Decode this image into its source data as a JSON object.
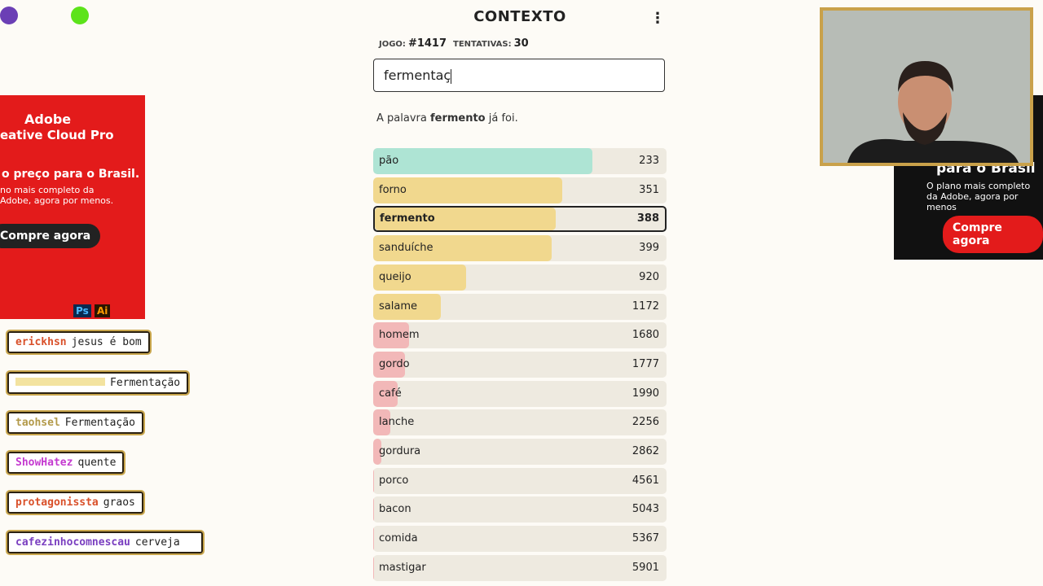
{
  "header": {
    "title": "CONTEXTO",
    "game_label": "JOGO:",
    "game_number": "#1417",
    "attempts_label": "TENTATIVAS:",
    "attempts": 30
  },
  "input": {
    "value": "fermentaç"
  },
  "message": {
    "before": "A palavra",
    "word": "fermento",
    "after": "já foi."
  },
  "guesses": [
    {
      "word": "pão",
      "rank": 233
    },
    {
      "word": "forno",
      "rank": 351
    },
    {
      "word": "fermento",
      "rank": 388
    },
    {
      "word": "sanduíche",
      "rank": 399
    },
    {
      "word": "queijo",
      "rank": 920
    },
    {
      "word": "salame",
      "rank": 1172
    },
    {
      "word": "homem",
      "rank": 1680
    },
    {
      "word": "gordo",
      "rank": 1777
    },
    {
      "word": "café",
      "rank": 1990
    },
    {
      "word": "lanche",
      "rank": 2256
    },
    {
      "word": "gordura",
      "rank": 2862
    },
    {
      "word": "porco",
      "rank": 4561
    },
    {
      "word": "bacon",
      "rank": 5043
    },
    {
      "word": "comida",
      "rank": 5367
    },
    {
      "word": "mastigar",
      "rank": 5901
    }
  ],
  "ad_left": {
    "brand": "Adobe",
    "product": "eative Cloud Pro",
    "headline": "o preço para o Brasil.",
    "text": "no mais completo da Adobe, agora por menos.",
    "button": "Compre agora",
    "icons": [
      "Ps",
      "Ai"
    ]
  },
  "ad_right": {
    "headline": "para o Brasil",
    "text": "O plano mais completo da Adobe, agora por menos",
    "button": "Compre agora"
  },
  "chat": [
    {
      "user": "erickhsn",
      "text": "jesus é bom",
      "color": "#d9502a"
    },
    {
      "text": "Fermentação"
    },
    {
      "user": "taohsel",
      "text": "Fermentação",
      "color": "#b39a4a"
    },
    {
      "user": "ShowHatez",
      "text": "quente",
      "color": "#c43ad0"
    },
    {
      "user": "protagonissta",
      "text": "graos",
      "color": "#d9502a"
    },
    {
      "user": "cafezinhocomnescau",
      "text": "cerveja",
      "color": "#7a3fc0"
    }
  ]
}
